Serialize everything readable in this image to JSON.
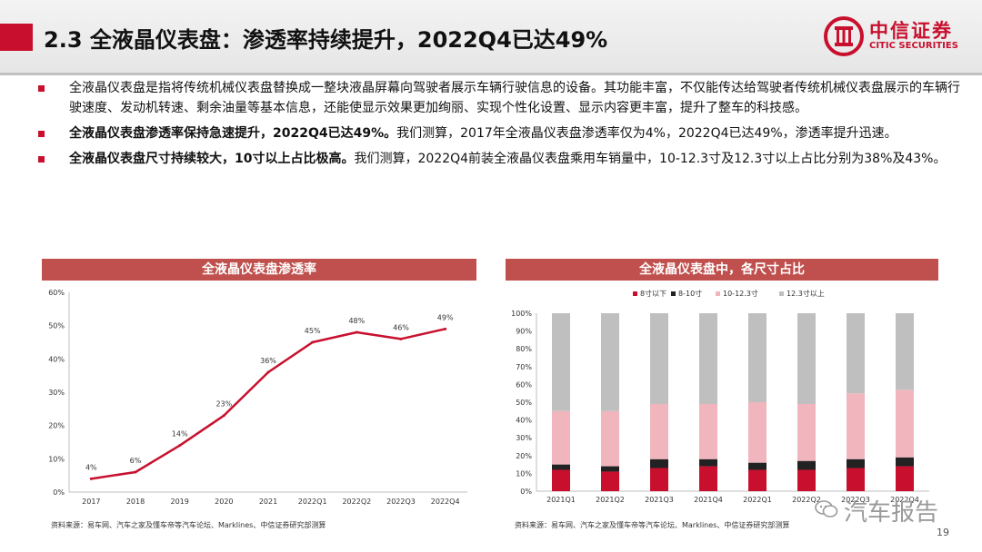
{
  "header": {
    "title": "2.3 全液晶仪表盘：渗透率持续提升，2022Q4已达49%",
    "logo_cn": "中信证券",
    "logo_en": "CITIC SECURITIES"
  },
  "bullets": [
    {
      "bold": "",
      "text": "全液晶仪表盘是指将传统机械仪表盘替换成一整块液晶屏幕向驾驶者展示车辆行驶信息的设备。其功能丰富，不仅能传达给驾驶者传统机械仪表盘展示的车辆行驶速度、发动机转速、剩余油量等基本信息，还能使显示效果更加绚丽、实现个性化设置、显示内容更丰富，提升了整车的科技感。"
    },
    {
      "bold": "全液晶仪表盘渗透率保持急速提升，2022Q4已达49%。",
      "text": "我们测算，2017年全液晶仪表盘渗透率仅为4%，2022Q4已达49%，渗透率提升迅速。"
    },
    {
      "bold": "全液晶仪表盘尺寸持续较大，10寸以上占比极高。",
      "text": "我们测算，2022Q4前装全液晶仪表盘乘用车销量中，10-12.3寸及12.3寸以上占比分别为38%及43%。"
    }
  ],
  "chart_data": [
    {
      "type": "line",
      "title": "全液晶仪表盘渗透率",
      "categories": [
        "2017",
        "2018",
        "2019",
        "2020",
        "2021",
        "2022Q1",
        "2022Q2",
        "2022Q3",
        "2022Q4"
      ],
      "values": [
        4,
        6,
        14,
        23,
        36,
        45,
        48,
        46,
        49
      ],
      "data_labels": [
        "4%",
        "6%",
        "14%",
        "23%",
        "36%",
        "45%",
        "48%",
        "46%",
        "49%"
      ],
      "yticks": [
        "0%",
        "10%",
        "20%",
        "30%",
        "40%",
        "50%",
        "60%"
      ],
      "ylim": [
        0,
        60
      ],
      "color": "#c8102e",
      "grid": false,
      "source": "资料来源：易车网、汽车之家及懂车帝等汽车论坛、Marklines、中信证券研究部测算"
    },
    {
      "type": "bar",
      "stacked": true,
      "title": "全液晶仪表盘中，各尺寸占比",
      "categories": [
        "2021Q1",
        "2021Q2",
        "2021Q3",
        "2021Q4",
        "2022Q1",
        "2022Q2",
        "2022Q3",
        "2022Q4"
      ],
      "series": [
        {
          "name": "8寸以下",
          "color": "#c8102e",
          "values": [
            12,
            11,
            13,
            14,
            12,
            12,
            13,
            14
          ]
        },
        {
          "name": "8-10寸",
          "color": "#222222",
          "values": [
            3,
            3,
            5,
            4,
            4,
            5,
            5,
            5
          ]
        },
        {
          "name": "10-12.3寸",
          "color": "#f0b5bd",
          "values": [
            30,
            31,
            31,
            31,
            34,
            32,
            37,
            38
          ]
        },
        {
          "name": "12.3寸以上",
          "color": "#bfbfbf",
          "values": [
            55,
            55,
            51,
            51,
            50,
            51,
            45,
            43
          ]
        }
      ],
      "yticks": [
        "0%",
        "10%",
        "20%",
        "30%",
        "40%",
        "50%",
        "60%",
        "70%",
        "80%",
        "90%",
        "100%"
      ],
      "ylim": [
        0,
        100
      ],
      "grid": false,
      "legend_position": "top",
      "source": "资料来源：易车网、汽车之家及懂车帝等汽车论坛、Marklines、中信证券研究部测算"
    }
  ],
  "watermark": "汽车报告",
  "page_number": "19"
}
